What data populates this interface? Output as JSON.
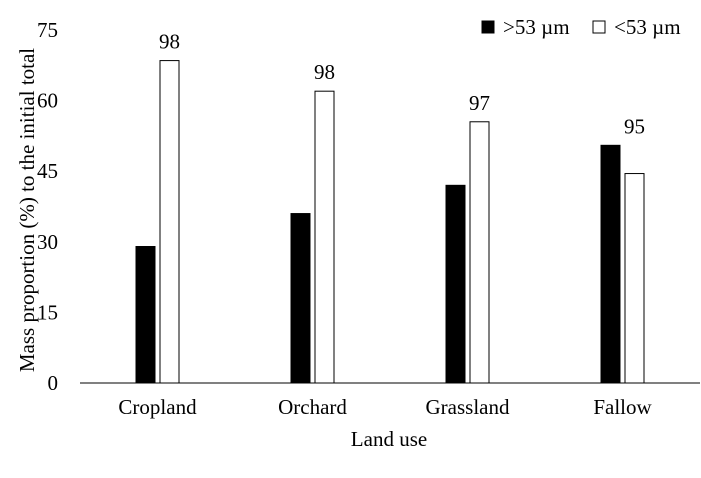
{
  "chart_data": {
    "type": "bar",
    "xlabel": "Land use",
    "ylabel": "Mass proportion (%) to the initial total",
    "ylim": [
      0,
      75
    ],
    "yticks": [
      0,
      15,
      30,
      45,
      60,
      75
    ],
    "categories": [
      "Cropland",
      "Orchard",
      "Grassland",
      "Fallow"
    ],
    "series": [
      {
        "name": ">53 µm",
        "color": "#000000",
        "values": [
          29,
          36,
          42,
          50.5
        ]
      },
      {
        "name": "<53 µm",
        "color": "#ffffff",
        "values": [
          68.5,
          62,
          55.5,
          44.5
        ]
      }
    ],
    "totals": [
      "98",
      "98",
      "97",
      "95"
    ],
    "legend": "top-right",
    "grid": false
  }
}
